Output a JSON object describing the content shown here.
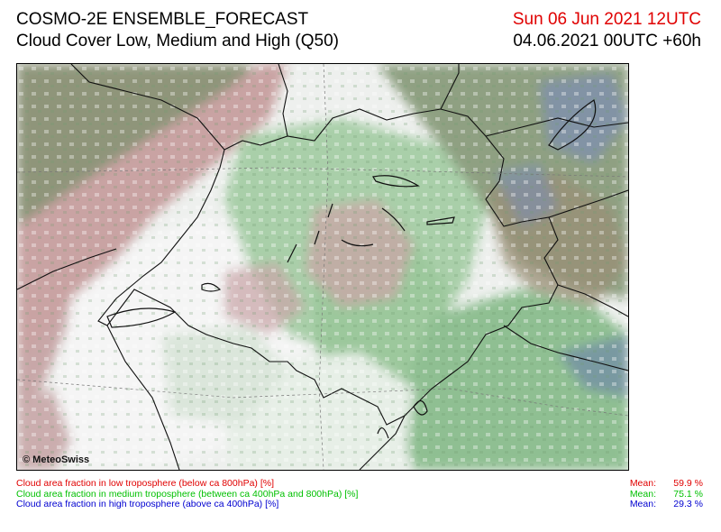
{
  "header": {
    "model": "COSMO-2E ENSEMBLE_FORECAST",
    "product": "Cloud Cover Low, Medium and High (Q50)",
    "valid_time": "Sun 06 Jun 2021 12UTC",
    "run_time": "04.06.2021 00UTC +60h"
  },
  "map": {
    "credit": "© MeteoSwiss"
  },
  "legend": {
    "mean_label": "Mean:",
    "rows": [
      {
        "text": "Cloud area fraction in low troposphere (below ca 800hPa) [%]",
        "mean": "59.9 %",
        "color": "#e00000"
      },
      {
        "text": "Cloud area fraction in medium troposphere (between ca 400hPa and 800hPa) [%]",
        "mean": "75.1 %",
        "color": "#00c000"
      },
      {
        "text": "Cloud area fraction in high troposphere (above ca 400hPa) [%]",
        "mean": "29.3 %",
        "color": "#0000d0"
      }
    ]
  }
}
